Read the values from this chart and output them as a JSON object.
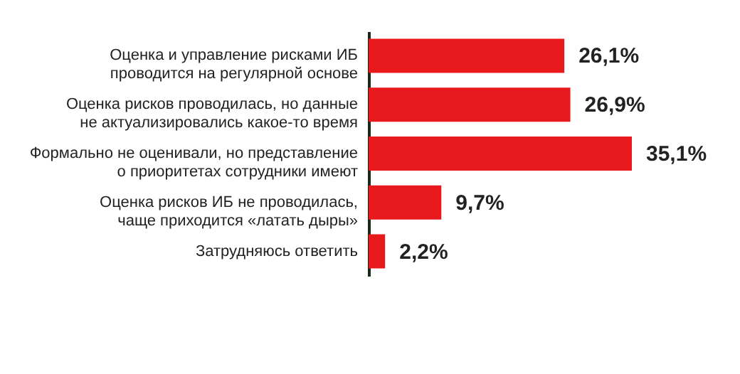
{
  "chart_data": {
    "type": "bar",
    "orientation": "horizontal",
    "categories": [
      "Оценка и управление рисками ИБ\nпроводится на регулярной основе",
      "Оценка рисков проводилась, но данные\nне актуализировались какое-то время",
      "Формально не оценивали, но представление\nо приоритетах сотрудники имеют",
      "Оценка рисков ИБ не проводилась,\nчаще приходится «латать дыры»",
      "Затрудняюсь ответить"
    ],
    "values": [
      26.1,
      26.9,
      35.1,
      9.7,
      2.2
    ],
    "value_labels": [
      "26,1%",
      "26,9%",
      "35,1%",
      "9,7%",
      "2,2%"
    ],
    "color": "#e8191c"
  }
}
